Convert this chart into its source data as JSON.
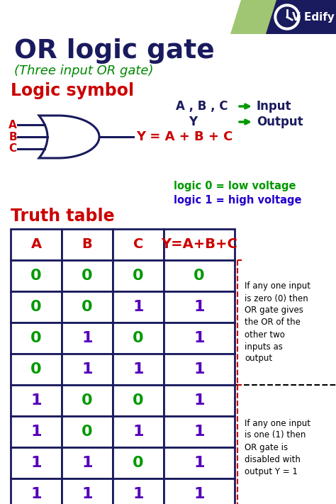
{
  "title": "OR logic gate",
  "subtitle": "(Three input OR gate)",
  "section1": "Logic symbol",
  "section2": "Truth table",
  "legend_input_label": "A , B , C",
  "legend_output_label": "Y",
  "legend_input_text": "Input",
  "legend_output_text": "Output",
  "equation": "Y = A + B + C",
  "logic0_text": "logic 0 = low voltage",
  "logic1_text": "logic 1 = high voltage",
  "table_headers": [
    "A",
    "B",
    "C",
    "Y=A+B+C"
  ],
  "table_data": [
    [
      0,
      0,
      0,
      0
    ],
    [
      0,
      0,
      1,
      1
    ],
    [
      0,
      1,
      0,
      1
    ],
    [
      0,
      1,
      1,
      1
    ],
    [
      1,
      0,
      0,
      1
    ],
    [
      1,
      0,
      1,
      1
    ],
    [
      1,
      1,
      0,
      1
    ],
    [
      1,
      1,
      1,
      1
    ]
  ],
  "note1": "If any one input\nis zero (0) then\nOR gate gives\nthe OR of the\nother two\ninputs as\noutput",
  "note2": "If any one input\nis one (1) then\nOR gate is\ndisabled with\noutput Y = 1",
  "bg_color": "#ffffff",
  "title_color": "#1a1a5e",
  "subtitle_color": "#008800",
  "section_color": "#cc0000",
  "gate_color": "#1a1a5e",
  "equation_color": "#cc0000",
  "header_color": "#cc0000",
  "zero_color": "#009900",
  "one_color": "#5500bb",
  "logic0_color": "#009900",
  "logic1_color": "#2200cc",
  "note_color": "#000000",
  "table_border_color": "#1a1a5e",
  "brand_green": "#8fbc5a",
  "brand_dark": "#1a1a5e"
}
